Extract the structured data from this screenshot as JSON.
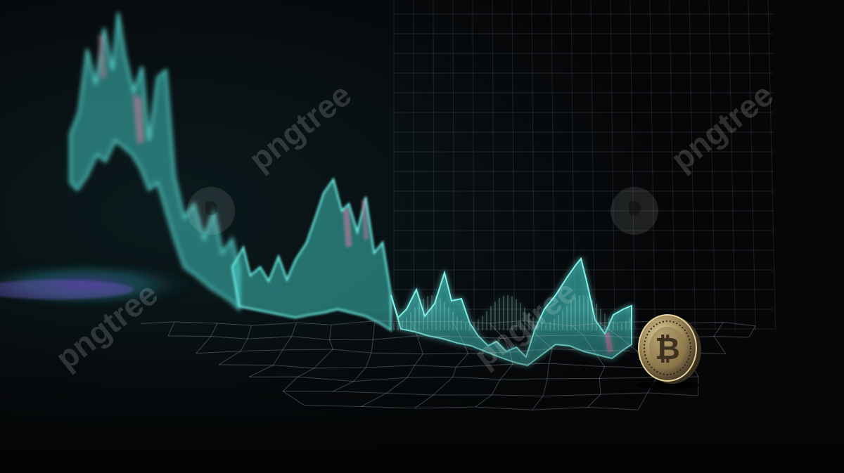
{
  "scene": {
    "subject": "glowing stock chart with bitcoin coin",
    "colors": {
      "background": "#050608",
      "line_primary": "#4fd6d0",
      "line_glow": "#2aa6a3",
      "line_accent": "#d37aa4",
      "mesh": "#9aa7b3",
      "coin": "#c9b07a"
    }
  },
  "watermark": {
    "text": "pngtree",
    "icon": "pngtree-logo-icon"
  },
  "coin": {
    "symbol": "₿",
    "icon": "bitcoin-icon"
  }
}
